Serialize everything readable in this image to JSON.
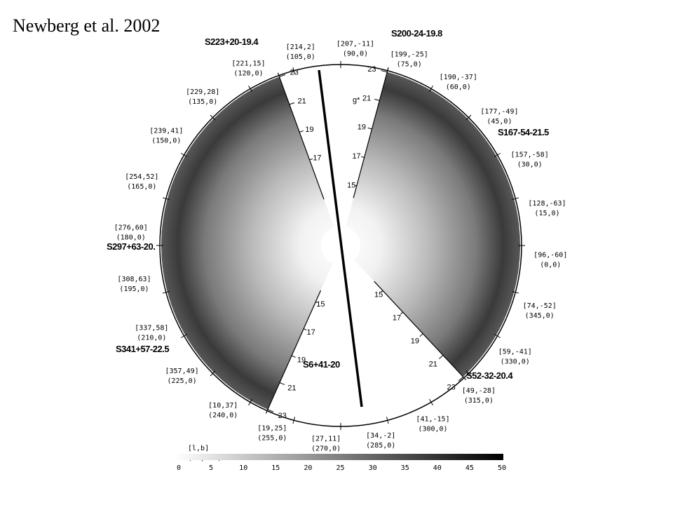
{
  "title": "Newberg et al. 2002",
  "circle_labels": [
    {
      "lb": "[96,-60]",
      "radec": "(0,0)"
    },
    {
      "lb": "[128,-63]",
      "radec": "(15,0)"
    },
    {
      "lb": "[157,-58]",
      "radec": "(30,0)"
    },
    {
      "lb": "[177,-49]",
      "radec": "(45,0)"
    },
    {
      "lb": "[190,-37]",
      "radec": "(60,0)"
    },
    {
      "lb": "[199,-25]",
      "radec": "(75,0)"
    },
    {
      "lb": "[207,-11]",
      "radec": "(90,0)"
    },
    {
      "lb": "[214,2]",
      "radec": "(105,0)"
    },
    {
      "lb": "[221,15]",
      "radec": "(120,0)"
    },
    {
      "lb": "[229,28]",
      "radec": "(135,0)"
    },
    {
      "lb": "[239,41]",
      "radec": "(150,0)"
    },
    {
      "lb": "[254,52]",
      "radec": "(165,0)"
    },
    {
      "lb": "[276,60]",
      "radec": "(180,0)"
    },
    {
      "lb": "[308,63]",
      "radec": "(195,0)"
    },
    {
      "lb": "[337,58]",
      "radec": "(210,0)"
    },
    {
      "lb": "[357,49]",
      "radec": "(225,0)"
    },
    {
      "lb": "[10,37]",
      "radec": "(240,0)"
    },
    {
      "lb": "[19,25]",
      "radec": "(255,0)"
    },
    {
      "lb": "[27,11]",
      "radec": "(270,0)"
    },
    {
      "lb": "[34,-2]",
      "radec": "(285,0)"
    },
    {
      "lb": "[41,-15]",
      "radec": "(300,0)"
    },
    {
      "lb": "[49,-28]",
      "radec": "(315,0)"
    },
    {
      "lb": "[59,-41]",
      "radec": "(330,0)"
    },
    {
      "lb": "[74,-52]",
      "radec": "(345,0)"
    }
  ],
  "legend_key": {
    "lb": "[l,b]",
    "radec": "(RA,DEC)"
  },
  "stripes": [
    "S223+20-19.4",
    "S200-24-19.8",
    "S167-54-21.5",
    "S297+63-20.",
    "S341+57-22.5",
    "S6+41-20",
    "S52-32-20.4"
  ],
  "magnitude_axes": [
    {
      "ticks": [
        "23",
        "21",
        "19",
        "17"
      ]
    },
    {
      "ticks": [
        "23",
        "21",
        "19",
        "17",
        "15"
      ]
    },
    {
      "ticks": [
        "15",
        "17",
        "19",
        "21",
        "23"
      ]
    },
    {
      "ticks": [
        "15",
        "17",
        "19",
        "21",
        "23"
      ]
    }
  ],
  "g_label": "g*",
  "colorbar": {
    "ticks": [
      "0",
      "5",
      "10",
      "15",
      "20",
      "25",
      "30",
      "35",
      "40",
      "45",
      "50"
    ]
  }
}
